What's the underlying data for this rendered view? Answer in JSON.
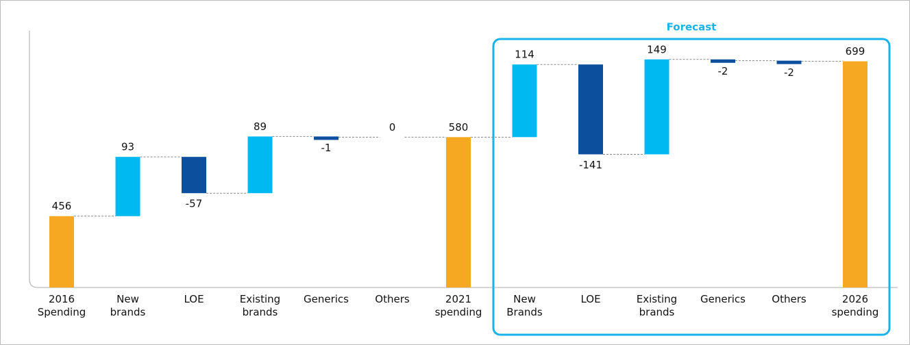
{
  "chart_data": {
    "type": "waterfall",
    "categories": [
      "2016 Spending",
      "New brands",
      "LOE",
      "Existing brands",
      "Generics",
      "Others",
      "2021 spending",
      "New Brands",
      "LOE",
      "Existing brands",
      "Generics",
      "Others",
      "2026 spending"
    ],
    "values": [
      456,
      93,
      -57,
      89,
      -1,
      0,
      580,
      114,
      -141,
      149,
      -2,
      -2,
      699
    ],
    "is_total": [
      true,
      false,
      false,
      false,
      false,
      false,
      true,
      false,
      false,
      false,
      false,
      false,
      true
    ],
    "colors": {
      "total": "#f7a823",
      "increase": "#00b9f1",
      "decrease": "#0b4f9d"
    },
    "ylim": [
      344,
      720
    ],
    "forecast_label": "Forecast"
  }
}
